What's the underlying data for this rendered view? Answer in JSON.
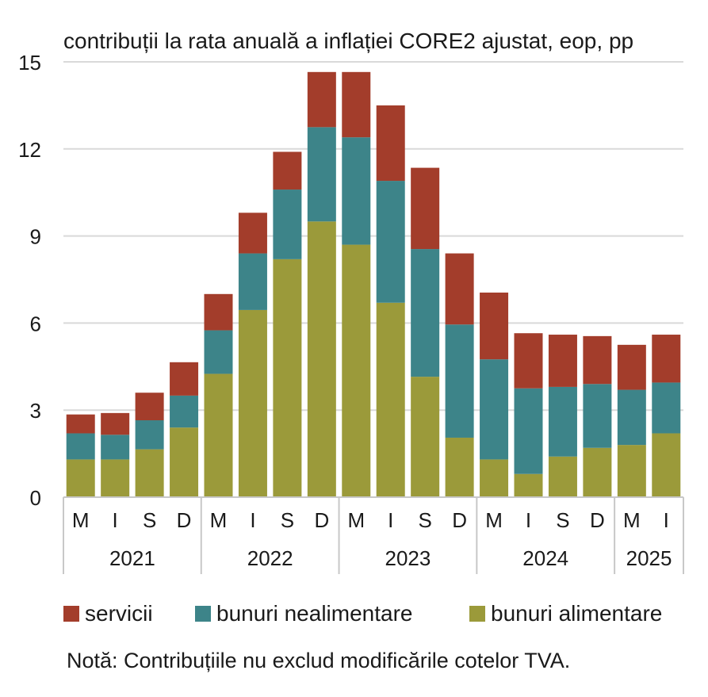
{
  "chart_data": {
    "type": "bar",
    "stacked": true,
    "title": "contribuții la rata anuală a inflației CORE2 ajustat, eop, pp",
    "ylim": [
      0,
      15
    ],
    "yticks": [
      0,
      3,
      6,
      9,
      12,
      15
    ],
    "grid": true,
    "legend_position": "bottom",
    "categories": [
      "M",
      "I",
      "S",
      "D",
      "M",
      "I",
      "S",
      "D",
      "M",
      "I",
      "S",
      "D",
      "M",
      "I",
      "S",
      "D",
      "M",
      "I"
    ],
    "year_groups": [
      {
        "label": "2021",
        "count": 4
      },
      {
        "label": "2022",
        "count": 4
      },
      {
        "label": "2023",
        "count": 4
      },
      {
        "label": "2024",
        "count": 4
      },
      {
        "label": "2025",
        "count": 2
      }
    ],
    "series": [
      {
        "name": "bunuri alimentare",
        "color": "#9b9a3a",
        "values": [
          1.3,
          1.3,
          1.65,
          2.4,
          4.25,
          6.45,
          8.2,
          9.5,
          8.7,
          6.7,
          4.15,
          2.05,
          1.3,
          0.8,
          1.4,
          1.7,
          1.8,
          2.2
        ]
      },
      {
        "name": "bunuri nealimentare",
        "color": "#3d8489",
        "values": [
          0.9,
          0.85,
          1.0,
          1.1,
          1.5,
          1.95,
          2.4,
          3.25,
          3.7,
          4.2,
          4.4,
          3.9,
          3.45,
          2.95,
          2.4,
          2.2,
          1.9,
          1.75
        ]
      },
      {
        "name": "servicii",
        "color": "#a33d2b",
        "values": [
          0.65,
          0.75,
          0.95,
          1.15,
          1.25,
          1.4,
          1.3,
          1.9,
          2.25,
          2.6,
          2.8,
          2.45,
          2.3,
          1.9,
          1.8,
          1.65,
          1.55,
          1.65
        ]
      }
    ],
    "legend_order": [
      "servicii",
      "bunuri nealimentare",
      "bunuri alimentare"
    ]
  },
  "note": "Notă: Contribuțiile nu exclud modificările cotelor TVA."
}
